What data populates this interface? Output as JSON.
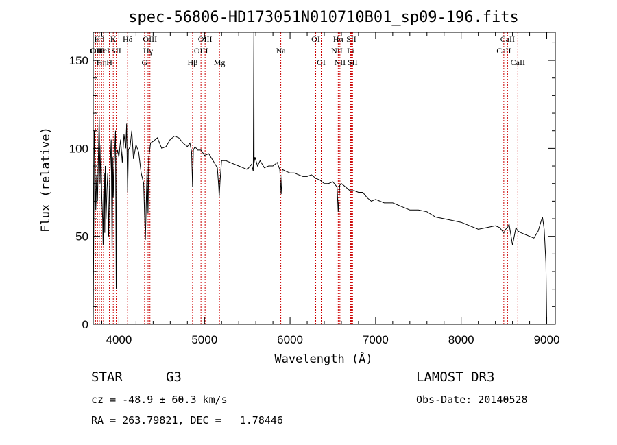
{
  "chart_data": {
    "type": "line",
    "title": "spec-56806-HD173051N010710B01_sp09-196.fits",
    "xlabel": "Wavelength (Å)",
    "ylabel": "Flux (relative)",
    "xlim": [
      3700,
      9100
    ],
    "ylim": [
      0,
      166
    ],
    "x_ticks": [
      4000,
      5000,
      6000,
      7000,
      8000,
      9000
    ],
    "y_ticks": [
      0,
      50,
      100,
      150
    ],
    "series": [
      {
        "name": "flux",
        "x": [
          3700,
          3705,
          3712,
          3720,
          3730,
          3740,
          3750,
          3760,
          3770,
          3780,
          3790,
          3800,
          3810,
          3815,
          3820,
          3830,
          3835,
          3840,
          3850,
          3860,
          3870,
          3880,
          3890,
          3900,
          3910,
          3920,
          3930,
          3934,
          3940,
          3950,
          3960,
          3968,
          3975,
          3985,
          4000,
          4020,
          4040,
          4060,
          4080,
          4090,
          4102,
          4110,
          4130,
          4150,
          4170,
          4200,
          4230,
          4260,
          4290,
          4300,
          4310,
          4330,
          4340,
          4350,
          4370,
          4400,
          4450,
          4500,
          4550,
          4600,
          4650,
          4700,
          4750,
          4800,
          4830,
          4850,
          4861,
          4870,
          4890,
          4920,
          4960,
          5000,
          5050,
          5100,
          5150,
          5167,
          5172,
          5183,
          5200,
          5250,
          5300,
          5350,
          5400,
          5450,
          5500,
          5550,
          5570,
          5577,
          5580,
          5590,
          5620,
          5650,
          5700,
          5750,
          5800,
          5850,
          5880,
          5890,
          5896,
          5910,
          5950,
          6000,
          6050,
          6100,
          6150,
          6200,
          6250,
          6300,
          6350,
          6400,
          6450,
          6500,
          6550,
          6563,
          6570,
          6580,
          6600,
          6650,
          6700,
          6750,
          6800,
          6850,
          6900,
          6950,
          7000,
          7100,
          7200,
          7300,
          7400,
          7500,
          7600,
          7700,
          7800,
          7900,
          8000,
          8100,
          8200,
          8300,
          8400,
          8450,
          8498,
          8520,
          8542,
          8560,
          8600,
          8640,
          8662,
          8700,
          8750,
          8800,
          8850,
          8900,
          8930,
          8950,
          8970,
          8990,
          9000
        ],
        "y": [
          2,
          45,
          110,
          95,
          65,
          85,
          70,
          95,
          118,
          80,
          102,
          72,
          60,
          45,
          72,
          86,
          52,
          90,
          60,
          76,
          86,
          50,
          78,
          92,
          105,
          40,
          95,
          72,
          85,
          98,
          110,
          20,
          96,
          99,
          95,
          105,
          92,
          108,
          100,
          114,
          75,
          99,
          101,
          110,
          94,
          102,
          98,
          86,
          80,
          62,
          48,
          90,
          63,
          95,
          103,
          104,
          106,
          100,
          101,
          105,
          107,
          106,
          103,
          101,
          103,
          98,
          78,
          99,
          101,
          99,
          99,
          96,
          97,
          93,
          89,
          78,
          72,
          82,
          93,
          93,
          92,
          91,
          90,
          89,
          88,
          91,
          87,
          166,
          92,
          95,
          90,
          93,
          89,
          90,
          90,
          92,
          88,
          80,
          74,
          88,
          87,
          86,
          86,
          85,
          84,
          84,
          85,
          83,
          82,
          80,
          80,
          81,
          78,
          64,
          70,
          79,
          80,
          78,
          76,
          76,
          75,
          75,
          72,
          70,
          71,
          69,
          69,
          67,
          65,
          65,
          64,
          61,
          60,
          59,
          58,
          56,
          54,
          55,
          56,
          55,
          52,
          54,
          55,
          57,
          45,
          55,
          53,
          52,
          51,
          50,
          49,
          53,
          58,
          61,
          54,
          35,
          2
        ]
      }
    ],
    "spectral_lines": [
      {
        "wl": 3727,
        "labels": [
          "OII"
        ],
        "row": [
          1
        ]
      },
      {
        "wl": 3750,
        "labels": [
          "",
          "OIII"
        ],
        "row": [
          2
        ]
      },
      {
        "wl": 3771,
        "labels": [
          "Hθ"
        ],
        "row": [
          0
        ]
      },
      {
        "wl": 3798,
        "labels": [
          "Hη"
        ],
        "row": [
          2
        ]
      },
      {
        "wl": 3820,
        "labels": [
          "HeI"
        ],
        "row": [
          1
        ]
      },
      {
        "wl": 3889,
        "labels": [
          "H"
        ],
        "row": [
          2
        ]
      },
      {
        "wl": 3934,
        "labels": [
          "K"
        ],
        "row": [
          0
        ]
      },
      {
        "wl": 3969,
        "labels": [
          "SII"
        ],
        "row": [
          1
        ]
      },
      {
        "wl": 4102,
        "labels": [
          "Hδ"
        ],
        "row": [
          0
        ]
      },
      {
        "wl": 4300,
        "labels": [
          "G"
        ],
        "row": [
          2
        ]
      },
      {
        "wl": 4341,
        "labels": [
          "Hγ"
        ],
        "row": [
          1
        ]
      },
      {
        "wl": 4363,
        "labels": [
          "OIII"
        ],
        "row": [
          0
        ]
      },
      {
        "wl": 4861,
        "labels": [
          "Hβ"
        ],
        "row": [
          2
        ]
      },
      {
        "wl": 4959,
        "labels": [
          "OIII"
        ],
        "row": [
          1
        ]
      },
      {
        "wl": 5007,
        "labels": [
          "OIII"
        ],
        "row": [
          0
        ]
      },
      {
        "wl": 5175,
        "labels": [
          "Mg"
        ],
        "row": [
          2
        ]
      },
      {
        "wl": 5892,
        "labels": [
          "Na"
        ],
        "row": [
          1
        ]
      },
      {
        "wl": 6300,
        "labels": [
          "OI"
        ],
        "row": [
          0
        ]
      },
      {
        "wl": 6364,
        "labels": [
          "OI"
        ],
        "row": [
          2
        ]
      },
      {
        "wl": 6548,
        "labels": [
          "NII"
        ],
        "row": [
          1
        ]
      },
      {
        "wl": 6563,
        "labels": [
          "Hα"
        ],
        "row": [
          0
        ]
      },
      {
        "wl": 6583,
        "labels": [
          "NII"
        ],
        "row": [
          2
        ]
      },
      {
        "wl": 6708,
        "labels": [
          "Li"
        ],
        "row": [
          1
        ]
      },
      {
        "wl": 6716,
        "labels": [
          "SII"
        ],
        "row": [
          0
        ]
      },
      {
        "wl": 6731,
        "labels": [
          "SII"
        ],
        "row": [
          2
        ]
      },
      {
        "wl": 8498,
        "labels": [
          "CaII"
        ],
        "row": [
          1
        ]
      },
      {
        "wl": 8542,
        "labels": [
          "CaII"
        ],
        "row": [
          0
        ]
      },
      {
        "wl": 8662,
        "labels": [
          "CaII"
        ],
        "row": [
          2
        ]
      }
    ],
    "line_color": "#000000",
    "marker_color": "#cc0000"
  },
  "info": {
    "object_class": "STAR",
    "subclass": "G3",
    "survey": "LAMOST DR3",
    "cz": "cz = -48.9 ± 60.3 km/s",
    "obs_date": "Obs-Date: 20140528",
    "coords": "RA = 263.79821, DEC =   1.78446"
  }
}
